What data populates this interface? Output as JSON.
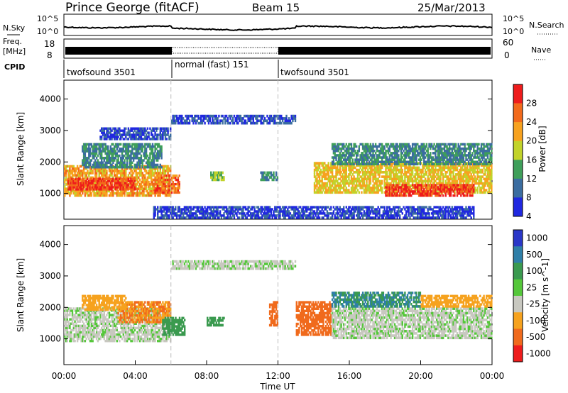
{
  "header": {
    "station": "Prince George (fitACF)",
    "beam": "Beam 15",
    "date": "25/Mar/2013"
  },
  "summary_panels": {
    "nsky_label": "N.Sky",
    "nsky_top_tick": "10^5",
    "nsky_bottom_tick": "10^0",
    "nsearch_label": "N.Search",
    "freq_label_line1": "Freq.",
    "freq_label_line2": "[MHz]",
    "freq_ticks": [
      "18",
      "8"
    ],
    "nave_ticks": [
      "60",
      "0"
    ],
    "nave_label": "Nave",
    "cpid_label": "CPID",
    "cpid_segments": [
      {
        "label": "twofsound 3501",
        "start_h": 0,
        "end_h": 6
      },
      {
        "label": "normal (fast) 151",
        "start_h": 6,
        "end_h": 12
      },
      {
        "label": "twofsound 3501",
        "start_h": 12,
        "end_h": 24
      }
    ]
  },
  "x_axis": {
    "label": "Time UT",
    "ticks": [
      "00:00",
      "04:00",
      "08:00",
      "12:00",
      "16:00",
      "20:00",
      "00:00"
    ]
  },
  "chart_data": [
    {
      "type": "heatmap",
      "quantity": "Power",
      "ylabel": "Slant Range [km]",
      "yticks": [
        "4000",
        "3000",
        "2000",
        "1000"
      ],
      "ylim": [
        180,
        4600
      ],
      "xlim_hours": [
        0,
        24
      ],
      "colorbar_label": "Power [dB]",
      "colorbar_ticks": [
        "28",
        "24",
        "20",
        "16",
        "12",
        "8",
        "4"
      ],
      "colorbar_colors": [
        "#ee1c1c",
        "#f26a1b",
        "#f7a21f",
        "#c2d32a",
        "#3f9f5a",
        "#3b6da0",
        "#2028e0"
      ],
      "regions": [
        {
          "t0": 0.0,
          "t1": 6.0,
          "r0": 900,
          "r1": 1900,
          "level": 20
        },
        {
          "t0": 0.2,
          "t1": 4.0,
          "r0": 1100,
          "r1": 1500,
          "level": 26
        },
        {
          "t0": 1.0,
          "t1": 5.5,
          "r0": 1800,
          "r1": 2600,
          "level": 10
        },
        {
          "t0": 5.0,
          "t1": 6.5,
          "r0": 1000,
          "r1": 1600,
          "level": 24
        },
        {
          "t0": 8.2,
          "t1": 9.0,
          "r0": 1400,
          "r1": 1700,
          "level": 14
        },
        {
          "t0": 11.0,
          "t1": 12.0,
          "r0": 1400,
          "r1": 1700,
          "level": 10
        },
        {
          "t0": 14.0,
          "t1": 24.0,
          "r0": 1000,
          "r1": 2000,
          "level": 18
        },
        {
          "t0": 18.0,
          "t1": 23.0,
          "r0": 900,
          "r1": 1300,
          "level": 27
        },
        {
          "t0": 15.0,
          "t1": 24.0,
          "r0": 1900,
          "r1": 2600,
          "level": 10
        },
        {
          "t0": 6.0,
          "t1": 13.0,
          "r0": 3200,
          "r1": 3500,
          "level": 6
        },
        {
          "t0": 2.0,
          "t1": 6.0,
          "r0": 2700,
          "r1": 3100,
          "level": 6
        },
        {
          "t0": 5.0,
          "t1": 23.0,
          "r0": 200,
          "r1": 600,
          "level": 5
        }
      ]
    },
    {
      "type": "heatmap",
      "quantity": "Velocity",
      "ylabel": "Slant Range [km]",
      "yticks": [
        "4000",
        "3000",
        "2000",
        "1000"
      ],
      "ylim": [
        180,
        4600
      ],
      "xlim_hours": [
        0,
        24
      ],
      "colorbar_label": "Velocity [m s^-1]",
      "colorbar_ticks": [
        "1000",
        "500",
        "100",
        "25",
        "-25",
        "-100",
        "-500",
        "-1000"
      ],
      "colorbar_colors": [
        "#2a37c8",
        "#2f7fa8",
        "#3a9a4f",
        "#55c73a",
        "#c8c8c0",
        "#f6a21e",
        "#f06a1c",
        "#ee1c1c"
      ],
      "regions": [
        {
          "t0": 0.0,
          "t1": 6.0,
          "r0": 900,
          "r1": 2000,
          "level": 0
        },
        {
          "t0": 3.0,
          "t1": 6.0,
          "r0": 1500,
          "r1": 2200,
          "level": -300
        },
        {
          "t0": 1.0,
          "t1": 3.5,
          "r0": 1900,
          "r1": 2400,
          "level": -150
        },
        {
          "t0": 5.5,
          "t1": 6.8,
          "r0": 1100,
          "r1": 1700,
          "level": 200
        },
        {
          "t0": 8.0,
          "t1": 9.0,
          "r0": 1400,
          "r1": 1700,
          "level": 200
        },
        {
          "t0": 11.5,
          "t1": 12.0,
          "r0": 1400,
          "r1": 2200,
          "level": -400
        },
        {
          "t0": 6.0,
          "t1": 13.0,
          "r0": 3200,
          "r1": 3500,
          "level": 0
        },
        {
          "t0": 13.0,
          "t1": 15.0,
          "r0": 1100,
          "r1": 2200,
          "level": -400
        },
        {
          "t0": 15.0,
          "t1": 24.0,
          "r0": 1000,
          "r1": 2000,
          "level": 0
        },
        {
          "t0": 15.0,
          "t1": 20.0,
          "r0": 2000,
          "r1": 2500,
          "level": 300
        },
        {
          "t0": 20.0,
          "t1": 24.0,
          "r0": 2000,
          "r1": 2400,
          "level": -150
        }
      ]
    }
  ]
}
